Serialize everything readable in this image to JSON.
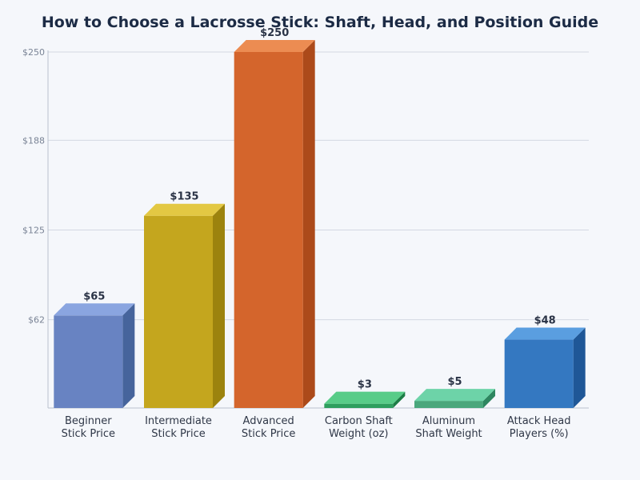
{
  "chart_data": {
    "type": "bar",
    "title": "How to Choose a Lacrosse Stick: Shaft, Head, and Position Guide",
    "xlabel": "",
    "ylabel": "",
    "categories": [
      [
        "Beginner",
        "Stick Price"
      ],
      [
        "Intermediate",
        "Stick Price"
      ],
      [
        "Advanced",
        "Stick Price"
      ],
      [
        "Carbon Shaft",
        "Weight (oz)"
      ],
      [
        "Aluminum",
        "Shaft Weight"
      ],
      [
        "Attack Head",
        "Players (%)"
      ]
    ],
    "values": [
      65,
      135,
      250,
      3,
      5,
      48
    ],
    "value_labels": [
      "$65",
      "$135",
      "$250",
      "$3",
      "$5",
      "$48"
    ],
    "ylim": [
      0,
      250
    ],
    "y_ticks": [
      62,
      125,
      188,
      250
    ],
    "y_tick_labels": [
      "$62",
      "$125",
      "$188",
      "$250"
    ],
    "grid": true,
    "legend": "none",
    "style": "3d-bar",
    "colors": {
      "front": [
        "#6883c2",
        "#c4a61e",
        "#d4652c",
        "#2e9e5e",
        "#4aa77c",
        "#3478c1"
      ],
      "top": [
        "#8aa5e0",
        "#e3c843",
        "#ec8c52",
        "#58cc88",
        "#6dd3a8",
        "#5a9ee0"
      ],
      "side": [
        "#46649c",
        "#9c830e",
        "#ac4a1a",
        "#1d7d46",
        "#2e8660",
        "#1f5797"
      ]
    }
  }
}
